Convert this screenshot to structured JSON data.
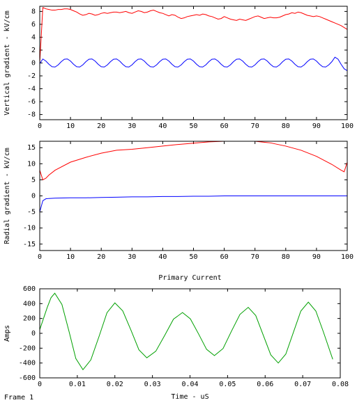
{
  "chart_data": [
    {
      "type": "line",
      "ylabel": "Vertical gradient - kV/cm",
      "xlim": [
        0,
        100
      ],
      "ylim": [
        -8.8,
        8.8
      ],
      "xticks": [
        0,
        10,
        20,
        30,
        40,
        50,
        60,
        70,
        80,
        90,
        100
      ],
      "yticks": [
        -8,
        -6,
        -4,
        -2,
        0,
        2,
        4,
        6,
        8
      ],
      "x": [
        0,
        1,
        2,
        3,
        4,
        5,
        6,
        7,
        8,
        9,
        10,
        11,
        12,
        13,
        14,
        15,
        16,
        17,
        18,
        19,
        20,
        21,
        22,
        23,
        24,
        25,
        26,
        27,
        28,
        29,
        30,
        31,
        32,
        33,
        34,
        35,
        36,
        37,
        38,
        39,
        40,
        41,
        42,
        43,
        44,
        45,
        46,
        47,
        48,
        49,
        50,
        51,
        52,
        53,
        54,
        55,
        56,
        57,
        58,
        59,
        60,
        61,
        62,
        63,
        64,
        65,
        66,
        67,
        68,
        69,
        70,
        71,
        72,
        73,
        74,
        75,
        76,
        77,
        78,
        79,
        80,
        81,
        82,
        83,
        84,
        85,
        86,
        87,
        88,
        89,
        90,
        91,
        92,
        93,
        94,
        95,
        96,
        97,
        98,
        99,
        100
      ],
      "series": [
        {
          "color": "#ff0000",
          "values": [
            0,
            8.6,
            8.4,
            8.3,
            8.2,
            8.2,
            8.3,
            8.3,
            8.4,
            8.4,
            8.3,
            8.1,
            7.9,
            7.6,
            7.4,
            7.5,
            7.7,
            7.6,
            7.4,
            7.5,
            7.7,
            7.8,
            7.7,
            7.8,
            7.9,
            7.9,
            7.8,
            7.9,
            8,
            7.8,
            7.7,
            7.9,
            8.1,
            8,
            7.8,
            7.9,
            8.1,
            8.2,
            8,
            7.8,
            7.7,
            7.5,
            7.3,
            7.5,
            7.4,
            7.1,
            6.9,
            7,
            7.2,
            7.3,
            7.4,
            7.5,
            7.4,
            7.6,
            7.5,
            7.3,
            7.2,
            7,
            6.8,
            6.9,
            7.2,
            7,
            6.8,
            6.7,
            6.6,
            6.8,
            6.7,
            6.6,
            6.8,
            7,
            7.2,
            7.3,
            7.1,
            6.9,
            7,
            7.1,
            7,
            7,
            7.1,
            7.3,
            7.5,
            7.6,
            7.8,
            7.7,
            7.9,
            7.8,
            7.6,
            7.4,
            7.3,
            7.2,
            7.3,
            7.2,
            7,
            6.8,
            6.6,
            6.4,
            6.2,
            6,
            5.8,
            5.5,
            5.2
          ]
        },
        {
          "color": "#0000ff",
          "values": [
            -0.1,
            0.62,
            0.3,
            -0.2,
            -0.58,
            -0.62,
            -0.3,
            0.2,
            0.58,
            0.62,
            0.3,
            -0.2,
            -0.58,
            -0.62,
            -0.3,
            0.2,
            0.58,
            0.62,
            0.3,
            -0.2,
            -0.58,
            -0.62,
            -0.3,
            0.2,
            0.58,
            0.62,
            0.3,
            -0.2,
            -0.58,
            -0.62,
            -0.3,
            0.2,
            0.58,
            0.62,
            0.3,
            -0.2,
            -0.58,
            -0.62,
            -0.3,
            0.2,
            0.58,
            0.62,
            0.3,
            -0.2,
            -0.58,
            -0.62,
            -0.3,
            0.2,
            0.58,
            0.62,
            0.3,
            -0.2,
            -0.58,
            -0.62,
            -0.3,
            0.2,
            0.58,
            0.62,
            0.3,
            -0.2,
            -0.58,
            -0.62,
            -0.3,
            0.2,
            0.58,
            0.62,
            0.3,
            -0.2,
            -0.58,
            -0.62,
            -0.3,
            0.2,
            0.58,
            0.62,
            0.3,
            -0.2,
            -0.58,
            -0.62,
            -0.3,
            0.2,
            0.58,
            0.62,
            0.3,
            -0.2,
            -0.58,
            -0.62,
            -0.3,
            0.2,
            0.58,
            0.62,
            0.3,
            -0.2,
            -0.58,
            -0.62,
            -0.3,
            0.2,
            0.9,
            0.6,
            -0.2,
            -0.9,
            -1.2
          ]
        }
      ]
    },
    {
      "type": "line",
      "ylabel": "Radial gradient - kV/cm",
      "xlim": [
        0,
        100
      ],
      "ylim": [
        -17,
        17
      ],
      "xticks": [
        0,
        10,
        20,
        30,
        40,
        50,
        60,
        70,
        80,
        90,
        100
      ],
      "yticks": [
        -15,
        -10,
        -5,
        0,
        5,
        10,
        15
      ],
      "x": [
        0,
        1,
        2,
        3,
        5,
        10,
        15,
        20,
        25,
        30,
        35,
        40,
        45,
        50,
        55,
        60,
        65,
        70,
        75,
        80,
        85,
        90,
        95,
        98,
        99,
        100
      ],
      "series": [
        {
          "color": "#ff0000",
          "values": [
            8,
            5,
            5.5,
            6.5,
            8,
            10.5,
            12,
            13.3,
            14.2,
            14.5,
            15,
            15.5,
            16,
            16.4,
            16.8,
            17,
            17,
            17,
            16.5,
            15.5,
            14.2,
            12.3,
            9.8,
            8,
            7.5,
            10.5
          ]
        },
        {
          "color": "#0000ff",
          "values": [
            -5,
            -1.5,
            -0.9,
            -0.8,
            -0.7,
            -0.6,
            -0.6,
            -0.5,
            -0.4,
            -0.3,
            -0.3,
            -0.2,
            -0.2,
            -0.1,
            -0.1,
            0,
            0,
            0,
            0,
            0,
            0,
            0,
            0,
            0,
            0,
            0
          ]
        }
      ]
    },
    {
      "type": "line",
      "title": "Primary Current",
      "xlabel": "Time - uS",
      "ylabel": "Amps",
      "xlim": [
        0,
        0.08
      ],
      "ylim": [
        -600,
        600
      ],
      "xticks": [
        0,
        0.01,
        0.02,
        0.03,
        0.04,
        0.05,
        0.06,
        0.07,
        0.08
      ],
      "yticks": [
        -600,
        -400,
        -200,
        0,
        200,
        400,
        600
      ],
      "x": [
        0,
        0.001,
        0.002,
        0.003,
        0.004,
        0.0059,
        0.0078,
        0.0096,
        0.0115,
        0.0136,
        0.0158,
        0.0179,
        0.02,
        0.0221,
        0.0243,
        0.0264,
        0.0285,
        0.0309,
        0.0333,
        0.0356,
        0.038,
        0.0401,
        0.0423,
        0.0444,
        0.0465,
        0.0488,
        0.051,
        0.0533,
        0.0555,
        0.0575,
        0.0595,
        0.0615,
        0.0635,
        0.0655,
        0.0675,
        0.0695,
        0.0715,
        0.0735,
        0.0755,
        0.078
      ],
      "series": [
        {
          "color": "#00a000",
          "values": [
            50,
            200,
            350,
            480,
            540,
            389,
            25,
            -339,
            -490,
            -358,
            -40,
            278,
            410,
            302,
            40,
            -222,
            -330,
            -241,
            -25,
            191,
            280,
            195,
            -10,
            -215,
            -300,
            -205,
            25,
            255,
            350,
            240,
            -25,
            -290,
            -400,
            -280,
            10,
            300,
            420,
            300,
            20,
            -350
          ]
        }
      ]
    }
  ],
  "footer": {
    "frame_label": "Frame 1"
  }
}
